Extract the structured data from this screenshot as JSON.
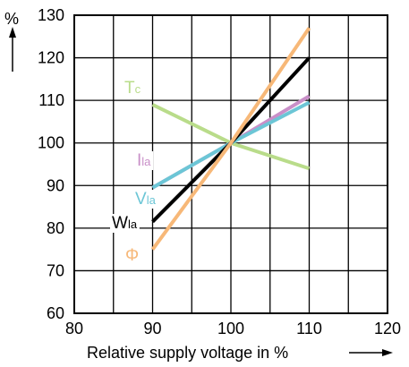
{
  "chart_data": {
    "type": "line",
    "xlabel": "Relative supply voltage in %",
    "ylabel_unit": "%",
    "xlim": [
      80,
      120
    ],
    "ylim": [
      60,
      130
    ],
    "x_ticks": [
      80,
      90,
      100,
      110,
      120
    ],
    "y_ticks": [
      60,
      70,
      80,
      90,
      100,
      110,
      120,
      130
    ],
    "grid": true,
    "series": [
      {
        "key": "Tc",
        "label_main": "T",
        "label_sub": "c",
        "color": "#b9dc8a",
        "x": [
          90,
          100,
          110
        ],
        "y": [
          109,
          100,
          94
        ]
      },
      {
        "key": "Ila",
        "label_main": "I",
        "label_sub": "la",
        "color": "#c98fc8",
        "x": [
          90,
          100,
          110
        ],
        "y": [
          89.5,
          100,
          111
        ]
      },
      {
        "key": "Vla",
        "label_main": "V",
        "label_sub": "la",
        "color": "#6cc6d6",
        "x": [
          90,
          100,
          110
        ],
        "y": [
          89.5,
          100,
          109.5
        ]
      },
      {
        "key": "Wla",
        "label_main": "W",
        "label_sub": "la",
        "color": "#000000",
        "x": [
          90,
          100,
          110
        ],
        "y": [
          81.5,
          100,
          120
        ]
      },
      {
        "key": "Phi",
        "label_main": "Φ",
        "label_sub": "",
        "color": "#f7b878",
        "x": [
          90,
          100,
          110
        ],
        "y": [
          75,
          100,
          127
        ]
      }
    ]
  }
}
